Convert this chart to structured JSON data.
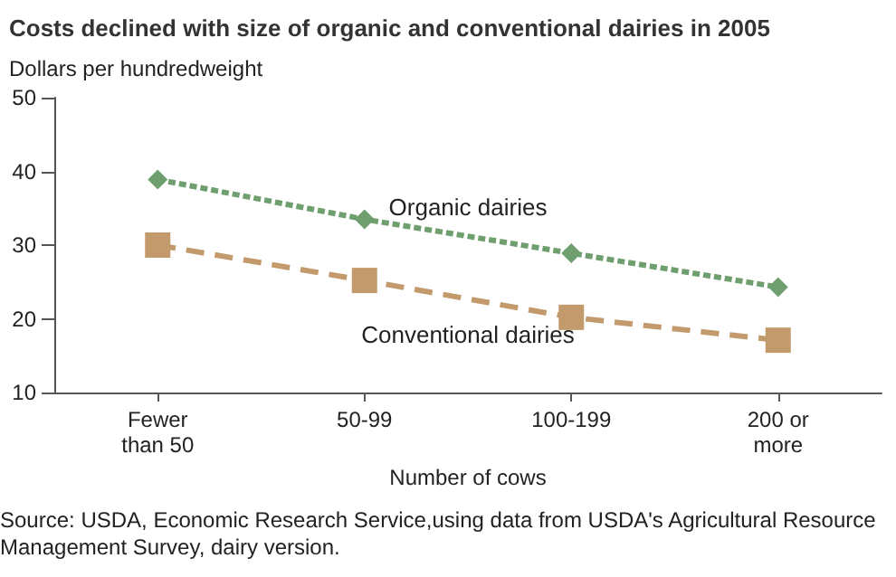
{
  "chart_data": {
    "type": "line",
    "title": "Costs declined with size of organic and conventional dairies in 2005",
    "ylabel": "Dollars per hundredweight",
    "xlabel": "Number of cows",
    "categories": [
      "Fewer\nthan 50",
      "50-99",
      "100-199",
      "200 or\nmore"
    ],
    "series": [
      {
        "name": "Organic dairies",
        "color": "#6f9f6f",
        "values": [
          38.9,
          33.5,
          28.9,
          24.3
        ],
        "marker": "diamond",
        "line_style": "dotted"
      },
      {
        "name": "Conventional dairies",
        "color": "#c29a6b",
        "values": [
          30,
          25.2,
          20.2,
          17.1
        ],
        "marker": "square",
        "line_style": "dashed"
      }
    ],
    "ylim": [
      10,
      50
    ],
    "yticks": [
      10,
      20,
      30,
      40,
      50
    ],
    "grid": false,
    "legend": false,
    "annotations": [
      "Source: USDA, Economic Research Service,using data from USDA's Agricultural Resource Management Survey, dairy version."
    ]
  }
}
